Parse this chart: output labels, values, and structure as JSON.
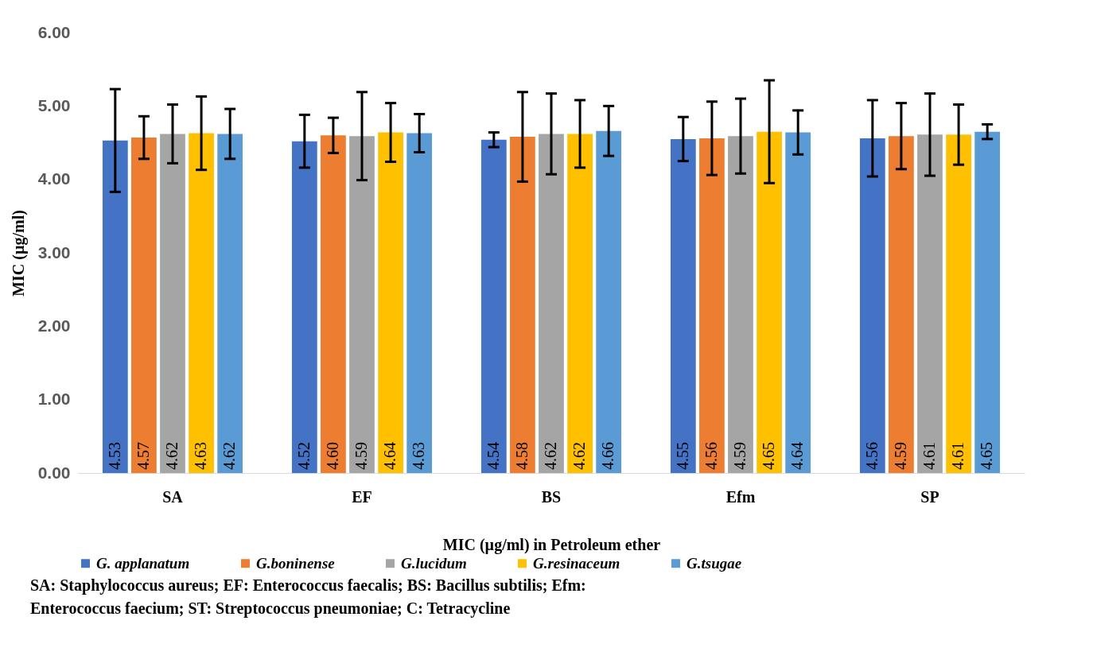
{
  "chart_data": {
    "type": "bar",
    "xlabel": "MIC (µg/ml) in Petroleum ether",
    "ylabel": "MIC (µg/ml)",
    "categories": [
      "SA",
      "EF",
      "BS",
      "Efm",
      "SP"
    ],
    "series": [
      {
        "name": "G. applanatum",
        "color": "#4472c4",
        "values": [
          4.53,
          4.52,
          4.54,
          4.55,
          4.56
        ],
        "value_labels": [
          "4.53",
          "4.52",
          "4.54",
          "4.55",
          "4.56"
        ],
        "errors": [
          0.7,
          0.36,
          0.1,
          0.3,
          0.52
        ]
      },
      {
        "name": "G.boninense",
        "color": "#ed7d31",
        "values": [
          4.57,
          4.6,
          4.58,
          4.56,
          4.59
        ],
        "value_labels": [
          "4.57",
          "4.60",
          "4.58",
          "4.56",
          "4.59"
        ],
        "errors": [
          0.29,
          0.24,
          0.61,
          0.5,
          0.45
        ]
      },
      {
        "name": "G.lucidum",
        "color": "#a5a5a5",
        "values": [
          4.62,
          4.59,
          4.62,
          4.59,
          4.61
        ],
        "value_labels": [
          "4.62",
          "4.59",
          "4.62",
          "4.59",
          "4.61"
        ],
        "errors": [
          0.4,
          0.6,
          0.55,
          0.51,
          0.56
        ]
      },
      {
        "name": "G.resinaceum",
        "color": "#ffc000",
        "values": [
          4.63,
          4.64,
          4.62,
          4.65,
          4.61
        ],
        "value_labels": [
          "4.63",
          "4.64",
          "4.62",
          "4.65",
          "4.61"
        ],
        "errors": [
          0.5,
          0.4,
          0.46,
          0.7,
          0.41
        ]
      },
      {
        "name": "G.tsugae",
        "color": "#5b9bd5",
        "values": [
          4.62,
          4.63,
          4.66,
          4.64,
          4.65
        ],
        "value_labels": [
          "4.62",
          "4.63",
          "4.66",
          "4.64",
          "4.65"
        ],
        "errors": [
          0.34,
          0.26,
          0.34,
          0.3,
          0.1
        ]
      }
    ],
    "ylim": [
      0,
      6
    ],
    "yticks": [
      {
        "value": 0,
        "label": "0.00"
      },
      {
        "value": 1,
        "label": "1.00"
      },
      {
        "value": 2,
        "label": "2.00"
      },
      {
        "value": 3,
        "label": "3.00"
      },
      {
        "value": 4,
        "label": "4.00"
      },
      {
        "value": 5,
        "label": "5.00"
      },
      {
        "value": 6,
        "label": "6.00"
      }
    ],
    "grid": false,
    "legend": "bottom",
    "annotations": [
      "SA: Staphylococcus aureus; EF: Enterococcus faecalis; BS: Bacillus subtilis; Efm:",
      "Enterococcus faecium; ST: Streptococcus pneumoniae; C: Tetracycline"
    ]
  }
}
